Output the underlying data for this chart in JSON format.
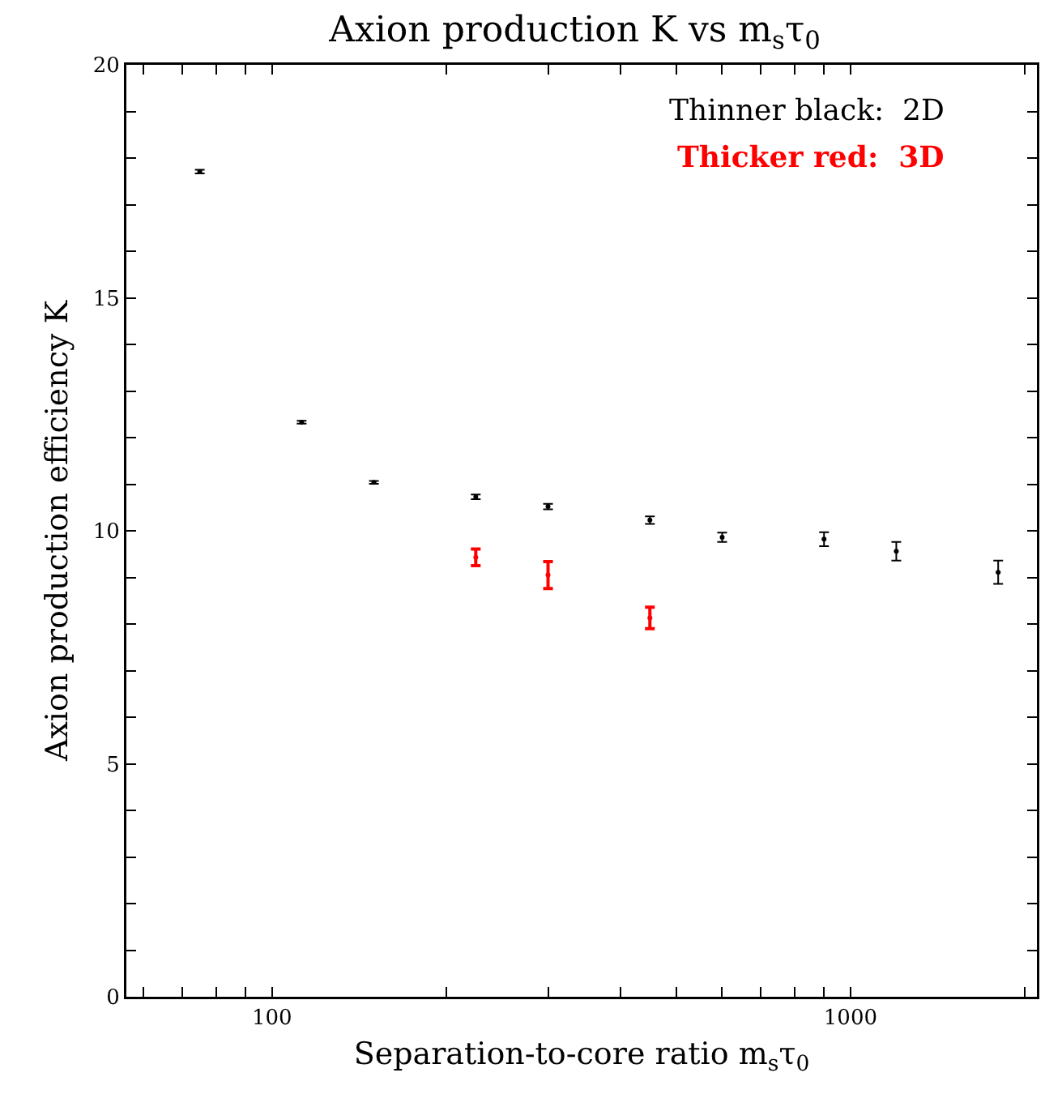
{
  "chart_data": {
    "type": "scatter",
    "title": "Axion production K vs m$_{s}$τ$_{0}$",
    "xlabel": "Separation-to-core ratio m$_{s}$τ$_{0}$",
    "ylabel": "Axion production efficiency K",
    "log": "x",
    "grid": false,
    "legend": "top right",
    "xlim": [
      56,
      2100
    ],
    "ylim": [
      0,
      20
    ],
    "xticks": [
      {
        "value": 60,
        "label": null
      },
      {
        "value": 70,
        "label": null
      },
      {
        "value": 80,
        "label": null
      },
      {
        "value": 90,
        "label": null
      },
      100,
      {
        "value": 200,
        "label": null
      },
      {
        "value": 300,
        "label": null
      },
      {
        "value": 400,
        "label": null
      },
      {
        "value": 500,
        "label": null
      },
      {
        "value": 600,
        "label": null
      },
      {
        "value": 700,
        "label": null
      },
      {
        "value": 800,
        "label": null
      },
      {
        "value": 900,
        "label": null
      },
      1000,
      {
        "value": 2000,
        "label": null
      }
    ],
    "yticks": [
      0,
      {
        "value": 1,
        "label": null
      },
      {
        "value": 2,
        "label": null
      },
      {
        "value": 3,
        "label": null
      },
      {
        "value": 4,
        "label": null
      },
      5,
      {
        "value": 6,
        "label": null
      },
      {
        "value": 7,
        "label": null
      },
      {
        "value": 8,
        "label": null
      },
      {
        "value": 9,
        "label": null
      },
      10,
      {
        "value": 11,
        "label": null
      },
      {
        "value": 12,
        "label": null
      },
      {
        "value": 13,
        "label": null
      },
      {
        "value": 14,
        "label": null
      },
      15,
      {
        "value": 16,
        "label": null
      },
      {
        "value": 17,
        "label": null
      },
      {
        "value": 18,
        "label": null
      },
      {
        "value": 19,
        "label": null
      },
      20
    ],
    "series": [
      {
        "name": "Thinner black:  2D",
        "color": "#000000",
        "x": [
          75,
          112.5,
          150,
          225,
          300,
          450,
          600,
          900,
          1200,
          1800
        ],
        "values": [
          17.71,
          12.33,
          11.04,
          10.73,
          10.52,
          10.23,
          9.86,
          9.82,
          9.56,
          9.11
        ],
        "errors": [
          0.04,
          0.03,
          0.03,
          0.05,
          0.06,
          0.08,
          0.1,
          0.15,
          0.2,
          0.25
        ]
      },
      {
        "name": "Thicker red:  3D",
        "color": "#ff0000",
        "x": [
          225,
          300,
          450
        ],
        "values": [
          9.43,
          9.05,
          8.13
        ],
        "errors": [
          0.18,
          0.29,
          0.23
        ]
      }
    ]
  }
}
